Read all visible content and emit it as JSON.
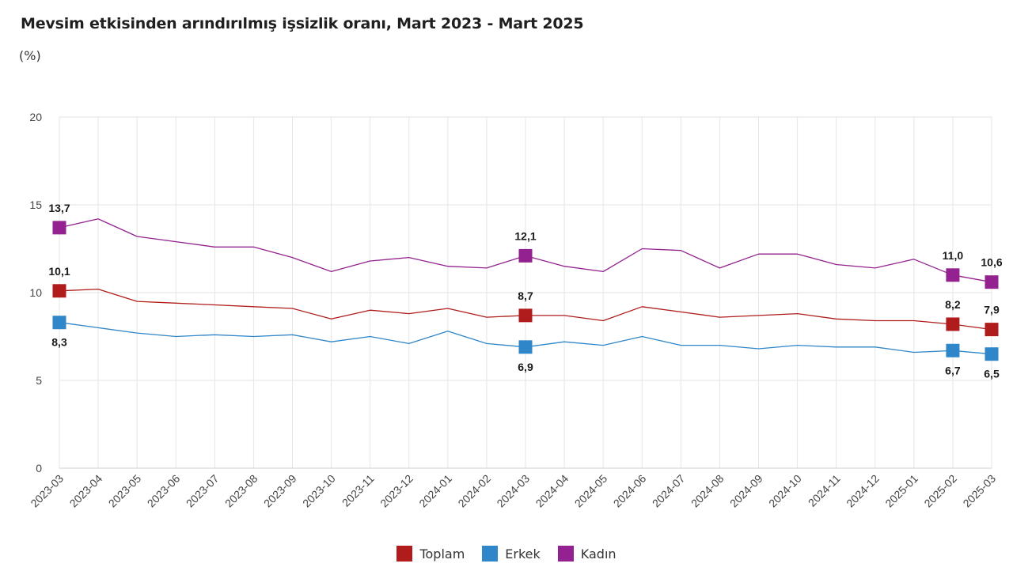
{
  "title": "Mevsim etkisinden arındırılmış işsizlik oranı, Mart 2023 - Mart 2025",
  "unit_label": "(%)",
  "chart_data": {
    "type": "line",
    "title": "Mevsim etkisinden arındırılmış işsizlik oranı, Mart 2023 - Mart 2025",
    "ylabel": "(%)",
    "ylim": [
      0,
      20
    ],
    "yticks": [
      0,
      5,
      10,
      15,
      20
    ],
    "grid": true,
    "legend_position": "bottom-center",
    "categories": [
      "2023-03",
      "2023-04",
      "2023-05",
      "2023-06",
      "2023-07",
      "2023-08",
      "2023-09",
      "2023-10",
      "2023-11",
      "2023-12",
      "2024-01",
      "2024-02",
      "2024-03",
      "2024-04",
      "2024-05",
      "2024-06",
      "2024-07",
      "2024-08",
      "2024-09",
      "2024-10",
      "2024-11",
      "2024-12",
      "2025-01",
      "2025-02",
      "2025-03"
    ],
    "series": [
      {
        "name": "Toplam",
        "color": "#b01c1c",
        "values": [
          10.1,
          10.2,
          9.5,
          9.4,
          9.3,
          9.2,
          9.1,
          8.5,
          9.0,
          8.8,
          9.1,
          8.6,
          8.7,
          8.7,
          8.4,
          9.2,
          8.9,
          8.6,
          8.7,
          8.8,
          8.5,
          8.4,
          8.4,
          8.2,
          7.9
        ],
        "marked": [
          {
            "index": 0,
            "label": "10,1",
            "pos": "above"
          },
          {
            "index": 12,
            "label": "8,7",
            "pos": "above"
          },
          {
            "index": 23,
            "label": "8,2",
            "pos": "above"
          },
          {
            "index": 24,
            "label": "7,9",
            "pos": "above"
          }
        ]
      },
      {
        "name": "Erkek",
        "color": "#2f86c8",
        "values": [
          8.3,
          8.0,
          7.7,
          7.5,
          7.6,
          7.5,
          7.6,
          7.2,
          7.5,
          7.1,
          7.8,
          7.1,
          6.9,
          7.2,
          7.0,
          7.5,
          7.0,
          7.0,
          6.8,
          7.0,
          6.9,
          6.9,
          6.6,
          6.7,
          6.5
        ],
        "marked": [
          {
            "index": 0,
            "label": "8,3",
            "pos": "below"
          },
          {
            "index": 12,
            "label": "6,9",
            "pos": "below"
          },
          {
            "index": 23,
            "label": "6,7",
            "pos": "below"
          },
          {
            "index": 24,
            "label": "6,5",
            "pos": "below"
          }
        ]
      },
      {
        "name": "Kadın",
        "color": "#93218f",
        "values": [
          13.7,
          14.2,
          13.2,
          12.9,
          12.6,
          12.6,
          12.0,
          11.2,
          11.8,
          12.0,
          11.5,
          11.4,
          12.1,
          11.5,
          11.2,
          12.5,
          12.4,
          11.4,
          12.2,
          12.2,
          11.6,
          11.4,
          11.9,
          11.0,
          10.6
        ],
        "marked": [
          {
            "index": 0,
            "label": "13,7",
            "pos": "above"
          },
          {
            "index": 12,
            "label": "12,1",
            "pos": "above"
          },
          {
            "index": 23,
            "label": "11,0",
            "pos": "above"
          },
          {
            "index": 24,
            "label": "10,6",
            "pos": "above"
          }
        ]
      }
    ]
  }
}
